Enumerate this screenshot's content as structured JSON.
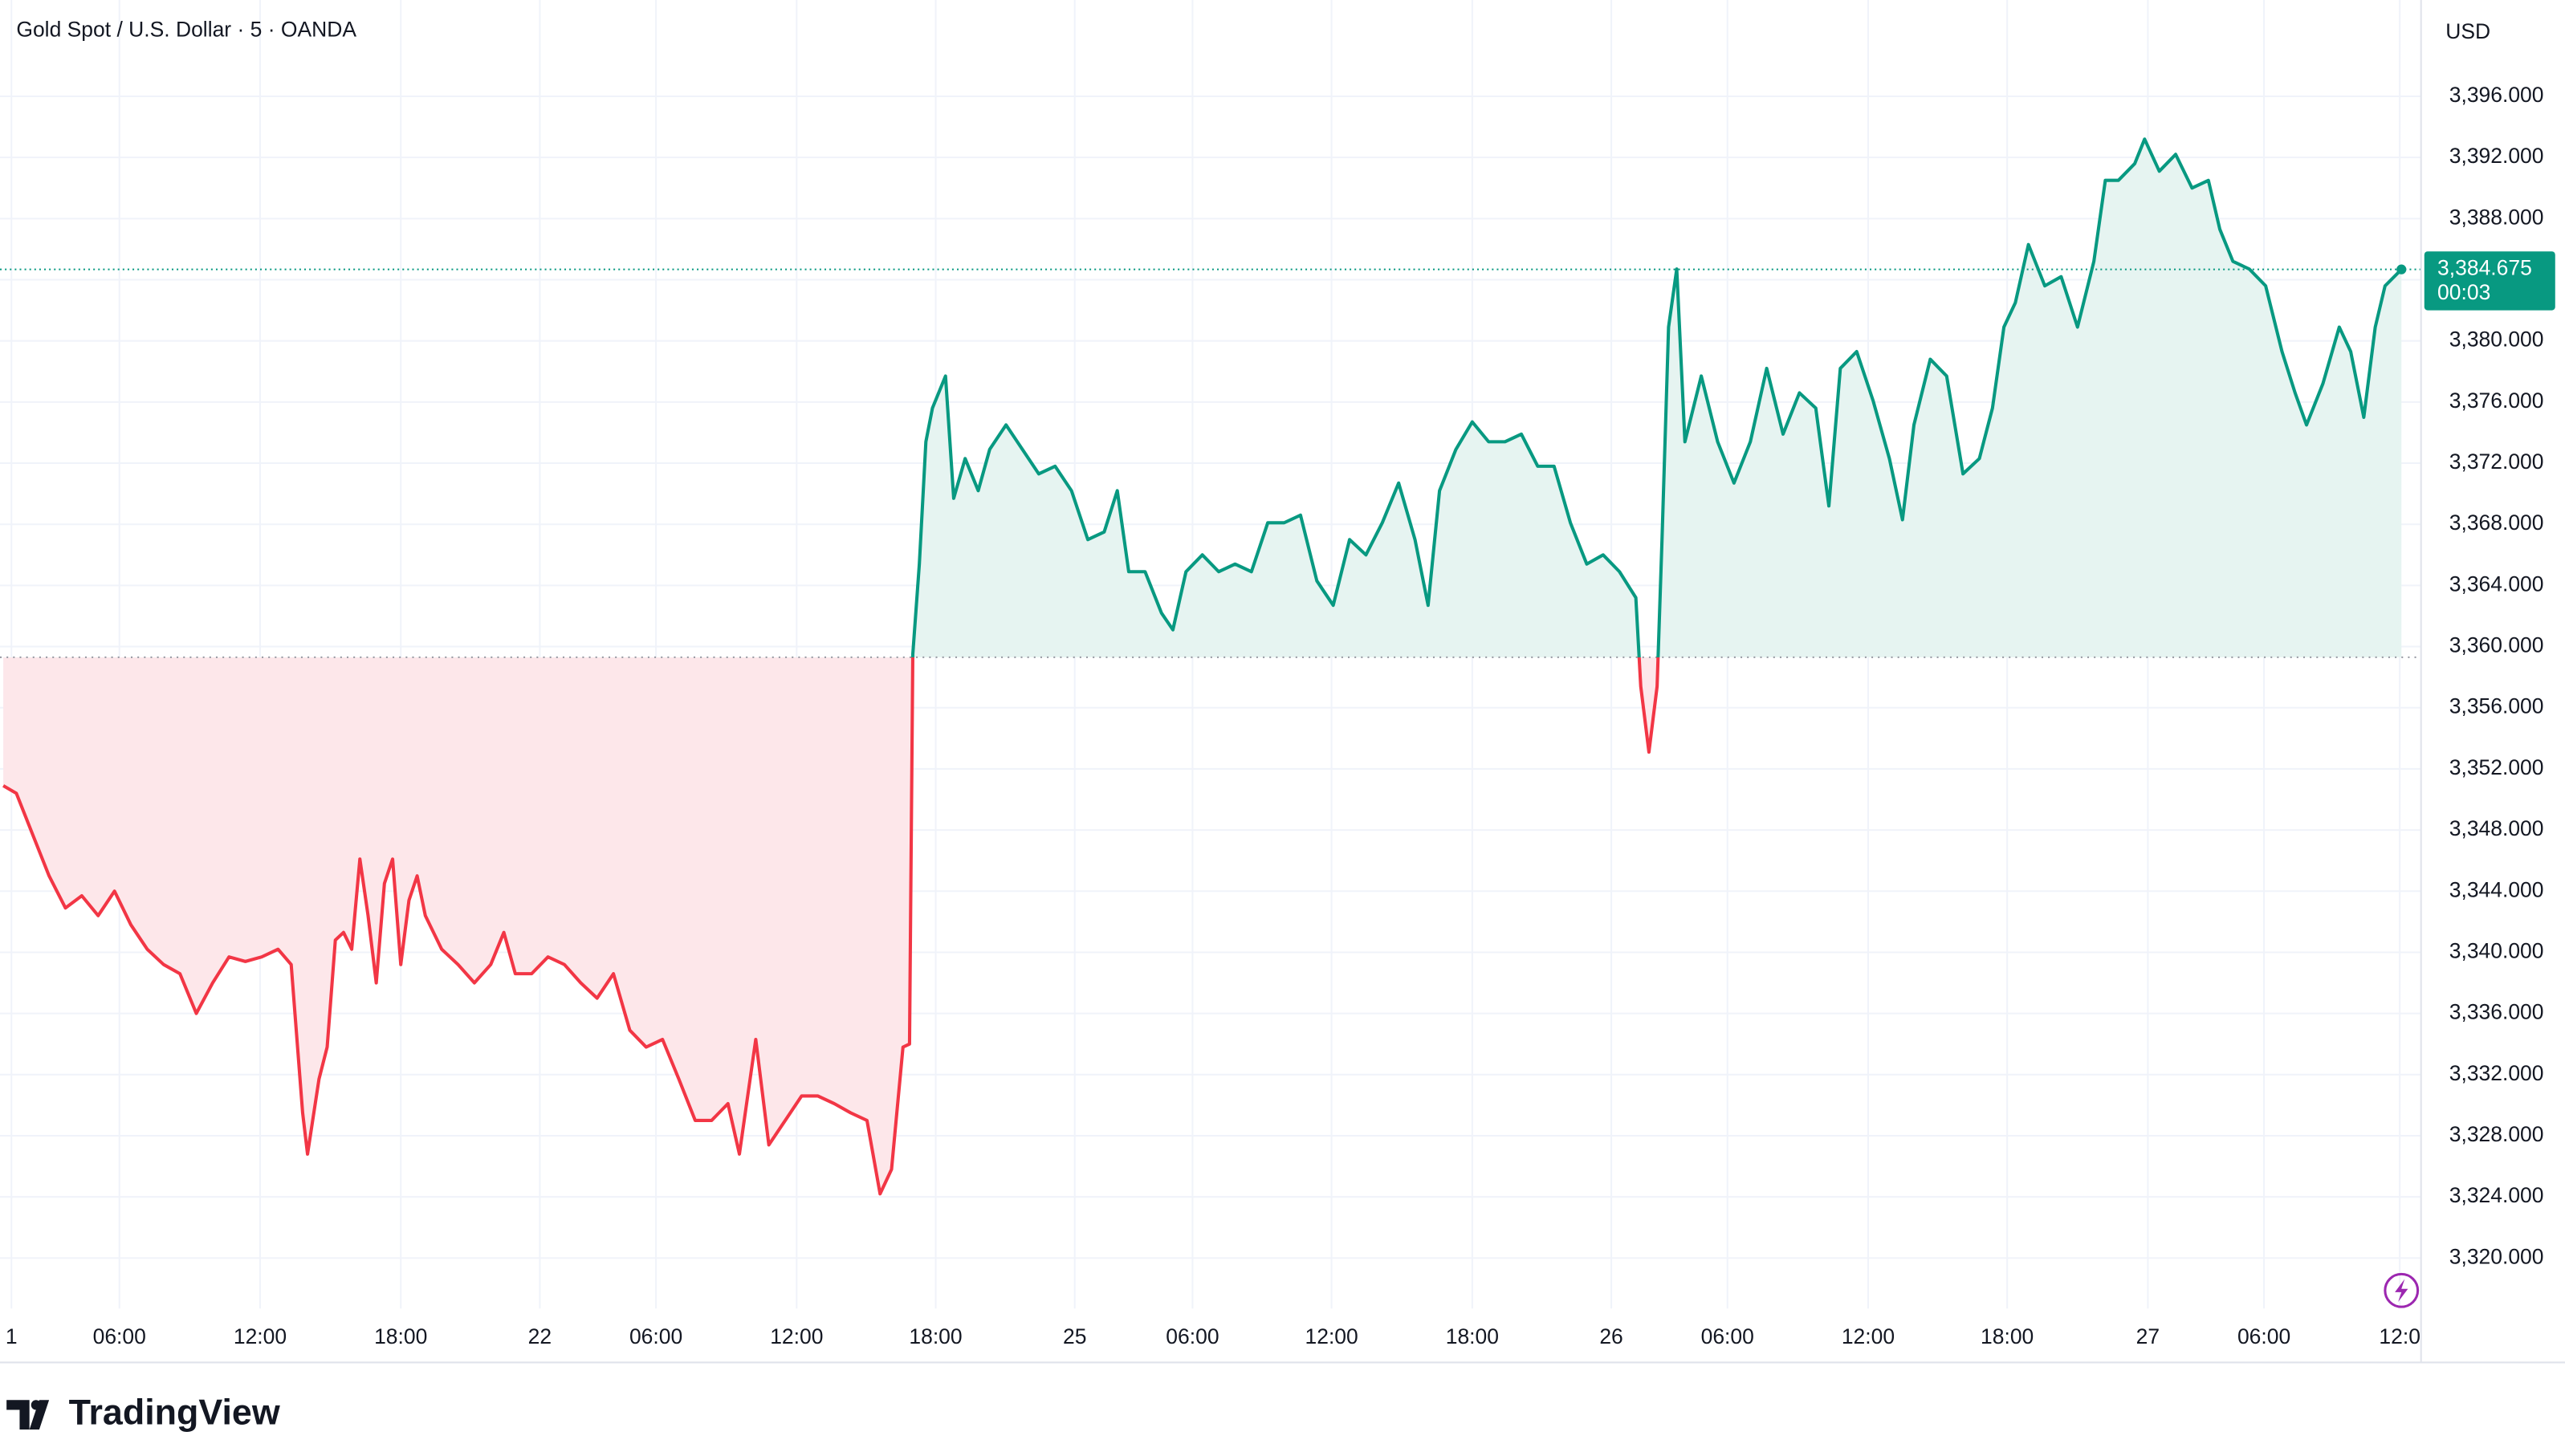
{
  "chart_data": {
    "type": "baseline",
    "title": "Gold Spot / U.S. Dollar · 5 · OANDA",
    "currency": "USD",
    "brand": "TradingView",
    "baseline": 3359.3,
    "up_color": "#089981",
    "down_color": "#f23645",
    "up_fill": "#e6f4f1",
    "down_fill": "#fde7ea",
    "grid": true,
    "last_value_label": "3,384.675",
    "countdown": "00:03",
    "x": [
      0.2,
      1.0,
      2.0,
      3.0,
      4.0,
      5.0,
      6.0,
      7.0,
      8.0,
      9.0,
      10.0,
      11.0,
      12.0,
      13.0,
      14.0,
      15.0,
      16.0,
      17.0,
      17.8,
      18.5,
      18.8,
      19.5,
      20.0,
      20.5,
      21.0,
      21.5,
      22.0,
      22.5,
      23.0,
      23.5,
      24.0,
      24.5,
      25.0,
      25.5,
      26.0,
      27.0,
      28.0,
      29.0,
      30.0,
      30.8,
      31.5,
      32.5,
      33.5,
      34.5,
      35.5,
      36.5,
      37.5,
      38.5,
      39.5,
      40.5,
      41.5,
      42.5,
      43.5,
      44.5,
      45.2,
      46.2,
      47.0,
      48.0,
      49.0,
      50.0,
      51.0,
      52.0,
      53.0,
      53.8,
      54.5,
      55.2,
      55.6,
      55.8,
      56.2,
      56.6,
      57.0,
      57.8,
      58.3,
      59.0,
      59.8,
      60.5,
      61.5,
      62.5,
      63.5,
      64.5,
      65.5,
      66.5,
      67.5,
      68.3,
      69.0,
      70.0,
      71.0,
      71.7,
      72.5,
      73.5,
      74.5,
      75.5,
      76.5,
      77.5,
      78.5,
      79.5,
      80.5,
      81.5,
      82.5,
      83.5,
      84.5,
      85.5,
      86.5,
      87.3,
      88.0,
      89.0,
      90.0,
      91.0,
      92.0,
      93.0,
      94.0,
      95.0,
      96.0,
      97.0,
      98.0,
      99.0,
      100.0,
      100.3,
      100.8,
      101.3,
      101.6,
      102.0,
      102.5,
      103.0,
      104.0,
      105.0,
      106.0,
      107.0,
      108.0,
      109.0,
      110.0,
      111.0,
      111.8,
      112.5,
      113.5,
      114.5,
      115.5,
      116.3,
      117.0,
      118.0,
      119.0,
      120.0,
      121.0,
      121.8,
      122.5,
      123.2,
      124.0,
      125.0,
      126.0,
      127.0,
      128.0,
      128.7,
      129.5,
      130.5,
      131.1,
      132.0,
      133.0,
      134.0,
      135.0,
      135.7,
      136.5,
      137.5,
      138.5,
      139.5,
      140.3,
      141.0,
      142.0,
      143.0,
      143.7,
      144.5,
      145.2,
      145.8,
      146.8
    ],
    "values": [
      3350.9,
      3350.4,
      3347.7,
      3345.0,
      3342.9,
      3343.7,
      3342.4,
      3344.0,
      3341.8,
      3340.2,
      3339.2,
      3338.6,
      3336.0,
      3338.0,
      3339.7,
      3339.4,
      3339.7,
      3340.2,
      3339.2,
      3329.5,
      3326.8,
      3331.7,
      3333.8,
      3340.8,
      3341.3,
      3340.2,
      3346.1,
      3342.4,
      3338.0,
      3344.5,
      3346.1,
      3339.2,
      3343.4,
      3345.0,
      3342.4,
      3340.2,
      3339.2,
      3338.0,
      3339.2,
      3341.3,
      3338.6,
      3338.6,
      3339.7,
      3339.2,
      3338.0,
      3337.0,
      3338.6,
      3334.9,
      3333.8,
      3334.3,
      3331.7,
      3329.0,
      3329.0,
      3330.1,
      3326.8,
      3334.3,
      3327.4,
      3329.0,
      3330.6,
      3330.6,
      3330.1,
      3329.5,
      3329.0,
      3324.2,
      3325.8,
      3333.8,
      3334.0,
      3359.5,
      3365.4,
      3373.4,
      3375.6,
      3377.7,
      3369.7,
      3372.3,
      3370.2,
      3372.9,
      3374.5,
      3372.9,
      3371.3,
      3371.8,
      3370.2,
      3367.0,
      3367.5,
      3370.2,
      3364.9,
      3364.9,
      3362.2,
      3361.1,
      3364.9,
      3366.0,
      3364.9,
      3365.4,
      3364.9,
      3368.1,
      3368.1,
      3368.6,
      3364.3,
      3362.7,
      3367.0,
      3366.0,
      3368.1,
      3370.7,
      3367.0,
      3362.7,
      3370.2,
      3372.9,
      3374.7,
      3373.4,
      3373.4,
      3373.9,
      3371.8,
      3371.8,
      3368.1,
      3365.4,
      3366.0,
      3364.9,
      3363.2,
      3357.4,
      3353.1,
      3357.4,
      3367.0,
      3380.9,
      3384.7,
      3373.4,
      3377.7,
      3373.4,
      3370.7,
      3373.4,
      3378.2,
      3373.9,
      3376.6,
      3375.6,
      3369.2,
      3378.2,
      3379.3,
      3376.1,
      3372.3,
      3368.3,
      3374.5,
      3378.8,
      3377.7,
      3371.3,
      3372.3,
      3375.6,
      3380.9,
      3382.5,
      3386.3,
      3383.6,
      3384.2,
      3380.9,
      3385.2,
      3390.5,
      3390.5,
      3391.6,
      3393.2,
      3391.1,
      3392.2,
      3390.0,
      3390.5,
      3387.3,
      3385.2,
      3384.7,
      3383.6,
      3379.3,
      3376.6,
      3374.5,
      3377.2,
      3380.9,
      3379.3,
      3375.0,
      3380.9,
      3383.6,
      3384.675
    ],
    "xlim": [
      0,
      148
    ],
    "ylim": [
      3316.7,
      3402.3
    ],
    "xticks": [
      {
        "value": 0.7,
        "label": "1"
      },
      {
        "value": 7.3,
        "label": "06:00"
      },
      {
        "value": 15.9,
        "label": "12:00"
      },
      {
        "value": 24.5,
        "label": "18:00"
      },
      {
        "value": 33.0,
        "label": "22"
      },
      {
        "value": 40.1,
        "label": "06:00"
      },
      {
        "value": 48.7,
        "label": "12:00"
      },
      {
        "value": 57.2,
        "label": "18:00"
      },
      {
        "value": 65.7,
        "label": "25"
      },
      {
        "value": 72.9,
        "label": "06:00"
      },
      {
        "value": 81.4,
        "label": "12:00"
      },
      {
        "value": 90.0,
        "label": "18:00"
      },
      {
        "value": 98.5,
        "label": "26"
      },
      {
        "value": 105.6,
        "label": "06:00"
      },
      {
        "value": 114.2,
        "label": "12:00"
      },
      {
        "value": 122.7,
        "label": "18:00"
      },
      {
        "value": 131.3,
        "label": "27"
      },
      {
        "value": 138.4,
        "label": "06:00"
      },
      {
        "value": 146.7,
        "label": "12:0"
      }
    ],
    "yticks": [
      {
        "value": 3320,
        "label": "3,320.000"
      },
      {
        "value": 3324,
        "label": "3,324.000"
      },
      {
        "value": 3328,
        "label": "3,328.000"
      },
      {
        "value": 3332,
        "label": "3,332.000"
      },
      {
        "value": 3336,
        "label": "3,336.000"
      },
      {
        "value": 3340,
        "label": "3,340.000"
      },
      {
        "value": 3344,
        "label": "3,344.000"
      },
      {
        "value": 3348,
        "label": "3,348.000"
      },
      {
        "value": 3352,
        "label": "3,352.000"
      },
      {
        "value": 3356,
        "label": "3,356.000"
      },
      {
        "value": 3360,
        "label": "3,360.000"
      },
      {
        "value": 3364,
        "label": "3,364.000"
      },
      {
        "value": 3368,
        "label": "3,368.000"
      },
      {
        "value": 3372,
        "label": "3,372.000"
      },
      {
        "value": 3376,
        "label": "3,376.000"
      },
      {
        "value": 3380,
        "label": "3,380.000"
      },
      {
        "value": 3384,
        "label": "3,384.000"
      },
      {
        "value": 3388,
        "label": "3,388.000"
      },
      {
        "value": 3392,
        "label": "3,392.000"
      },
      {
        "value": 3396,
        "label": "3,396.000"
      }
    ]
  }
}
